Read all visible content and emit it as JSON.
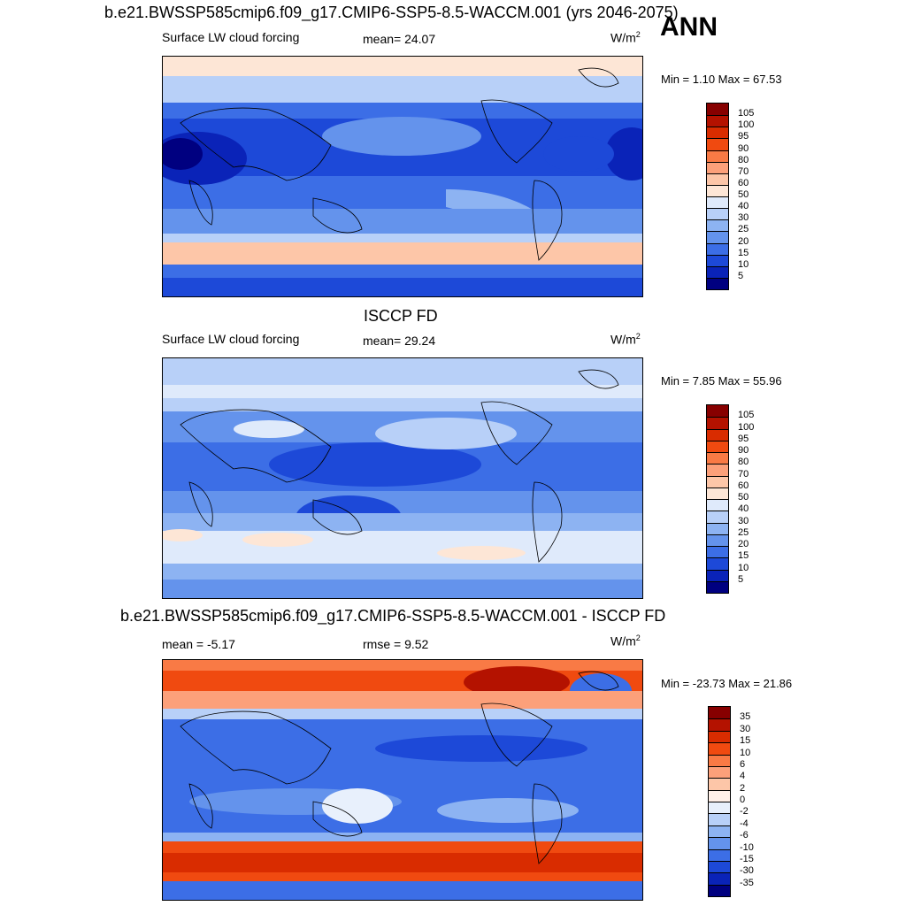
{
  "top_title": "b.e21.BWSSP585cmip6.f09_g17.CMIP6-SSP5-8.5-WACCM.001 (yrs 2046-2075)",
  "season": "ANN",
  "panels": [
    {
      "id": "model",
      "variable": "Surface LW cloud forcing",
      "stat_left": "",
      "stat_center": "mean=  24.07",
      "units": "W/m",
      "units_exp": "2",
      "minmax": "Min =   1.10 Max =  67.53",
      "colorbar_labels": [
        "105",
        "100",
        "95",
        "90",
        "80",
        "70",
        "60",
        "50",
        "40",
        "30",
        "25",
        "20",
        "15",
        "10",
        "5"
      ]
    },
    {
      "id": "obs",
      "title": "ISCCP FD",
      "variable": "Surface LW cloud forcing",
      "stat_left": "",
      "stat_center": "mean=  29.24",
      "units": "W/m",
      "units_exp": "2",
      "minmax": "Min =   7.85 Max =  55.96",
      "colorbar_labels": [
        "105",
        "100",
        "95",
        "90",
        "80",
        "70",
        "60",
        "50",
        "40",
        "30",
        "25",
        "20",
        "15",
        "10",
        "5"
      ]
    },
    {
      "id": "diff",
      "title": "b.e21.BWSSP585cmip6.f09_g17.CMIP6-SSP5-8.5-WACCM.001 - ISCCP FD",
      "variable": "",
      "stat_left": "mean =  -5.17",
      "stat_center": "rmse =   9.52",
      "units": "W/m",
      "units_exp": "2",
      "minmax": "Min = -23.73 Max =  21.86",
      "colorbar_labels": [
        "35",
        "30",
        "15",
        "10",
        "6",
        "4",
        "2",
        "0",
        "-2",
        "-4",
        "-6",
        "-10",
        "-15",
        "-30",
        "-35"
      ]
    }
  ],
  "colors": {
    "abs_scale": [
      "#870000",
      "#b41200",
      "#d92c00",
      "#f04a10",
      "#f97a45",
      "#fca07a",
      "#fdc6a8",
      "#fde6d6",
      "#dfeafb",
      "#b8d0f8",
      "#8db3f2",
      "#6493ec",
      "#3c6ee6",
      "#1d49d8",
      "#0a23b8",
      "#000080"
    ],
    "diff_scale": [
      "#870000",
      "#b41200",
      "#d92c00",
      "#f04a10",
      "#f97a45",
      "#fca07a",
      "#fdc6a8",
      "#fff0e8",
      "#e8f0fc",
      "#b8d0f8",
      "#8db3f2",
      "#6493ec",
      "#3c6ee6",
      "#1d49d8",
      "#0a23b8",
      "#000080"
    ]
  }
}
